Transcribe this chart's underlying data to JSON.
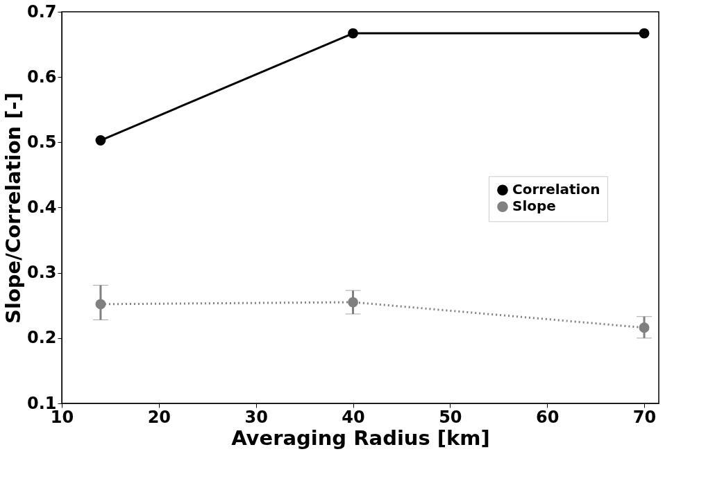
{
  "chart_data": {
    "type": "line",
    "xlabel": "Averaging Radius [km]",
    "ylabel": "Slope/Correlation [-]",
    "x": [
      14,
      40,
      70
    ],
    "series": [
      {
        "name": "Correlation",
        "color": "#000000",
        "values": [
          0.503,
          0.667,
          0.667
        ],
        "line_style": "solid",
        "marker": "circle"
      },
      {
        "name": "Slope",
        "color": "#808080",
        "values": [
          0.252,
          0.255,
          0.216
        ],
        "errors": [
          [
            0.228,
            0.281
          ],
          [
            0.237,
            0.273
          ],
          [
            0.2,
            0.233
          ]
        ],
        "line_style": "dotted",
        "marker": "circle"
      }
    ],
    "xlim": [
      10,
      71.5
    ],
    "xticks": [
      10,
      20,
      30,
      40,
      50,
      60,
      70
    ],
    "ylim": [
      0.1,
      0.7
    ],
    "yticks": [
      0.1,
      0.2,
      0.3,
      0.4,
      0.5,
      0.6,
      0.7
    ],
    "grid": false,
    "legend": "right"
  }
}
